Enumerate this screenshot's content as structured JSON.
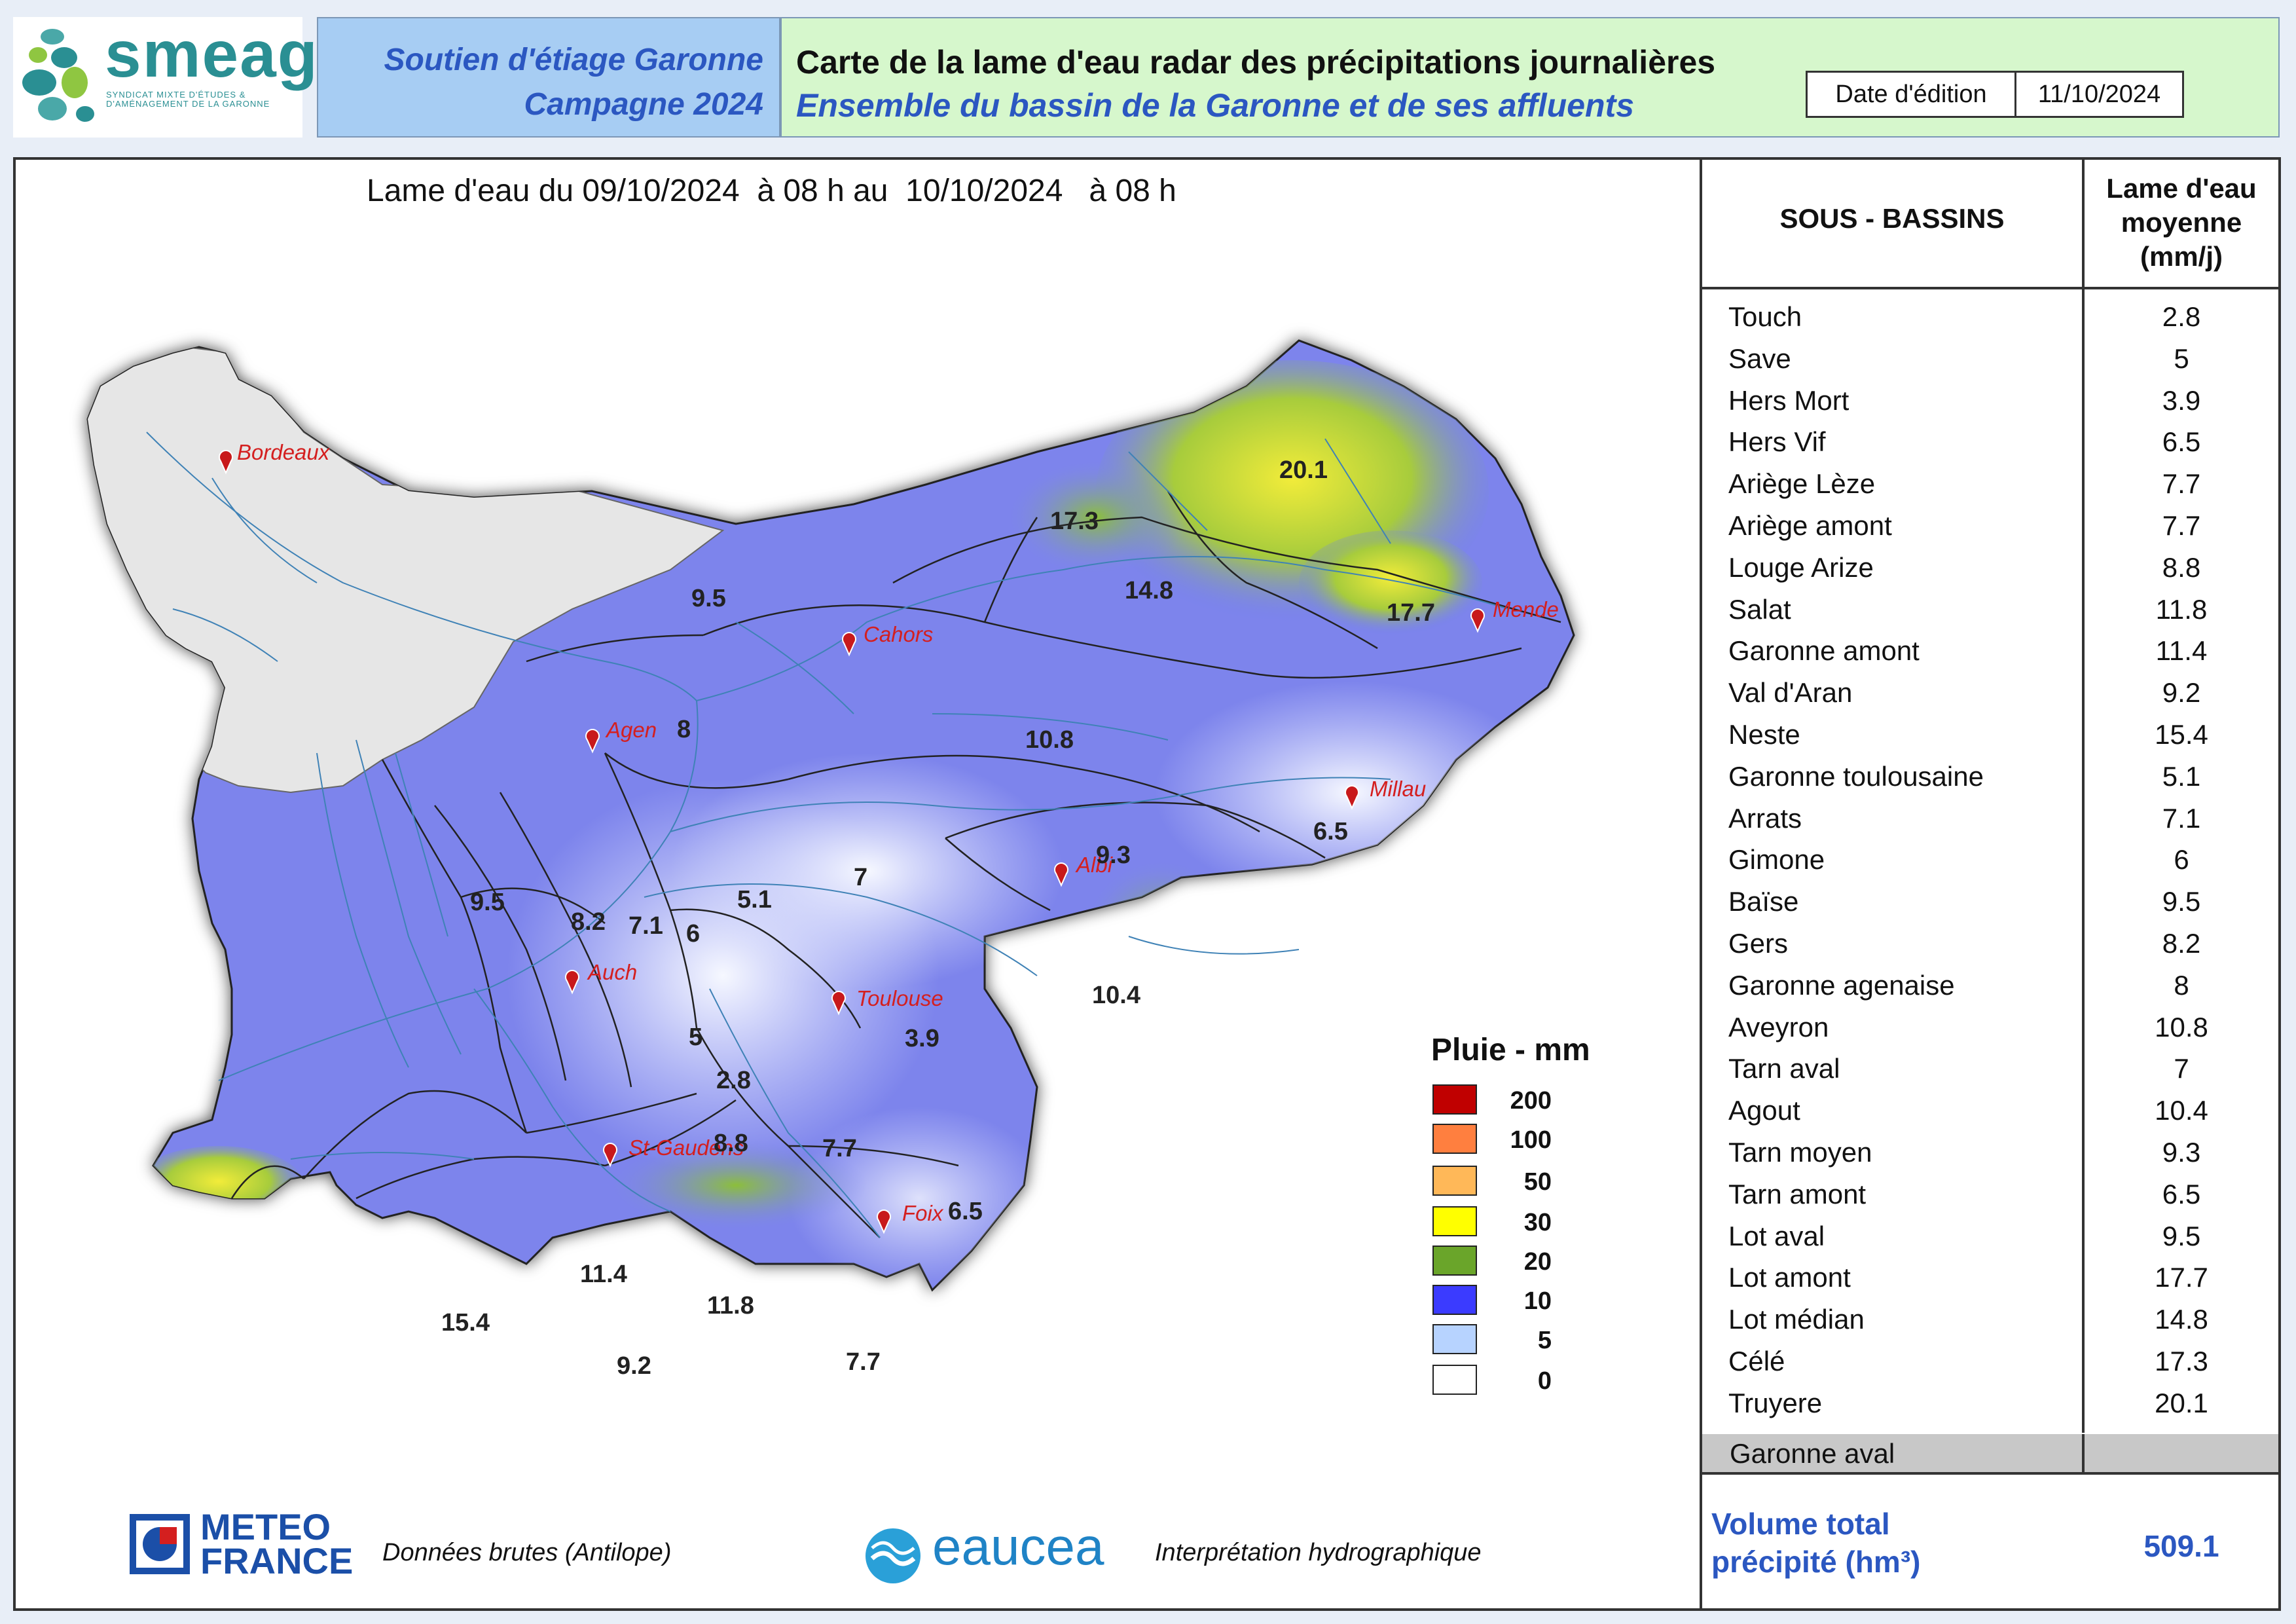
{
  "header": {
    "logo_name": "smeag",
    "logo_tagline": "SYNDICAT MIXTE D'ÉTUDES & D'AMÉNAGEMENT DE LA GARONNE",
    "campaign_line1": "Soutien d'étiage Garonne",
    "campaign_line2": "Campagne 2024",
    "title": "Carte de la lame d'eau radar des précipitations journalières",
    "subtitle": "Ensemble du bassin de la Garonne et de ses affluents",
    "date_label": "Date d'édition",
    "date_value": "11/10/2024"
  },
  "map": {
    "heading": "Lame d'eau du 09/10/2024  à 08 h au  10/10/2024   à 08 h",
    "cities": [
      "Bordeaux",
      "Cahors",
      "Mende",
      "Agen",
      "Millau",
      "Albi",
      "Auch",
      "Toulouse",
      "St-Gaudens",
      "Foix"
    ],
    "values": [
      "20.1",
      "17.3",
      "14.8",
      "17.7",
      "9.5",
      "8",
      "10.8",
      "6.5",
      "9.3",
      "7",
      "9.5",
      "5.1",
      "8.2",
      "7.1",
      "6",
      "10.4",
      "3.9",
      "5",
      "2.8",
      "8.8",
      "7.7",
      "6.5",
      "11.4",
      "11.8",
      "15.4",
      "9.2",
      "7.7"
    ]
  },
  "legend": {
    "title": "Pluie - mm",
    "items": [
      {
        "label": "200",
        "color": "#c00000"
      },
      {
        "label": "100",
        "color": "#ff7f3f"
      },
      {
        "label": "50",
        "color": "#ffb858"
      },
      {
        "label": "30",
        "color": "#ffff00"
      },
      {
        "label": "20",
        "color": "#6aa52a"
      },
      {
        "label": "10",
        "color": "#3b3bff"
      },
      {
        "label": "5",
        "color": "#b7d3ff"
      },
      {
        "label": "0",
        "color": "#ffffff"
      }
    ]
  },
  "footer": {
    "meteo_line1": "METEO",
    "meteo_line2": "FRANCE",
    "meteo_caption": "Données brutes (Antilope)",
    "eaucea_name": "eaucea",
    "eaucea_caption": "Interprétation hydrographique"
  },
  "table": {
    "col_basins": "SOUS - BASSINS",
    "col_lame_1": "Lame d'eau",
    "col_lame_2": "moyenne",
    "col_lame_3": "(mm/j)",
    "rows": [
      {
        "name": "Touch",
        "value": "2.8"
      },
      {
        "name": "Save",
        "value": "5"
      },
      {
        "name": "Hers Mort",
        "value": "3.9"
      },
      {
        "name": "Hers Vif",
        "value": "6.5"
      },
      {
        "name": "Ariège Lèze",
        "value": "7.7"
      },
      {
        "name": "Ariège amont",
        "value": "7.7"
      },
      {
        "name": "Louge Arize",
        "value": "8.8"
      },
      {
        "name": "Salat",
        "value": "11.8"
      },
      {
        "name": "Garonne amont",
        "value": "11.4"
      },
      {
        "name": "Val d'Aran",
        "value": "9.2"
      },
      {
        "name": "Neste",
        "value": "15.4"
      },
      {
        "name": "Garonne toulousaine",
        "value": "5.1"
      },
      {
        "name": "Arrats",
        "value": "7.1"
      },
      {
        "name": "Gimone",
        "value": "6"
      },
      {
        "name": "Baïse",
        "value": "9.5"
      },
      {
        "name": "Gers",
        "value": "8.2"
      },
      {
        "name": "Garonne agenaise",
        "value": "8"
      },
      {
        "name": "Aveyron",
        "value": "10.8"
      },
      {
        "name": "Tarn aval",
        "value": "7"
      },
      {
        "name": "Agout",
        "value": "10.4"
      },
      {
        "name": "Tarn moyen",
        "value": "9.3"
      },
      {
        "name": "Tarn amont",
        "value": "6.5"
      },
      {
        "name": "Lot aval",
        "value": "9.5"
      },
      {
        "name": "Lot amont",
        "value": "17.7"
      },
      {
        "name": "Lot médian",
        "value": "14.8"
      },
      {
        "name": "Célé",
        "value": "17.3"
      },
      {
        "name": "Truyere",
        "value": "20.1"
      }
    ],
    "aval_name": "Garonne aval",
    "volume_label_1": "Volume total",
    "volume_label_2": "précipité (hm³)",
    "volume_value": "509.1"
  }
}
